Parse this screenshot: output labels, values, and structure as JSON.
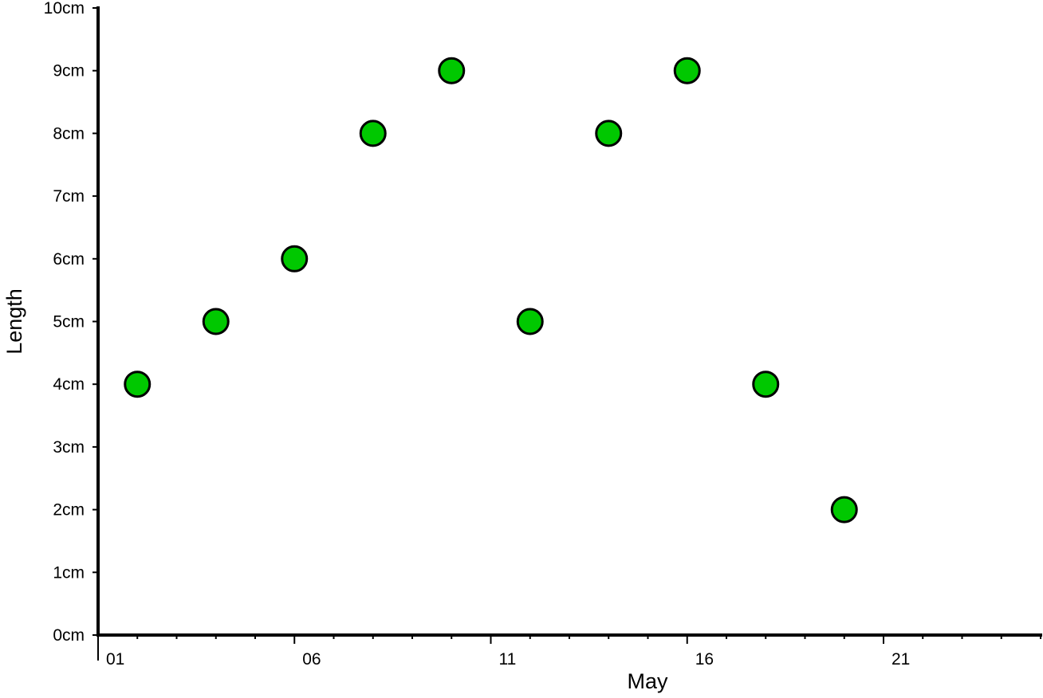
{
  "chart_data": {
    "type": "scatter",
    "title": "",
    "xlabel": "May",
    "ylabel": "Length",
    "x": [
      "2018-05-02",
      "2018-05-04",
      "2018-05-06",
      "2018-05-08",
      "2018-05-10",
      "2018-05-12",
      "2018-05-14",
      "2018-05-16",
      "2018-05-18",
      "2018-05-20"
    ],
    "y": [
      4,
      5,
      6,
      8,
      9,
      5,
      8,
      9,
      4,
      2
    ],
    "xlim": [
      "2018-05-01",
      "2018-05-25"
    ],
    "ylim": [
      0,
      10
    ],
    "x_tick_labels": [
      "01",
      "06",
      "11",
      "16",
      "21"
    ],
    "y_tick_labels": [
      "0cm",
      "1cm",
      "2cm",
      "3cm",
      "4cm",
      "5cm",
      "6cm",
      "7cm",
      "8cm",
      "9cm",
      "10cm"
    ],
    "y_unit": "cm",
    "grid": false,
    "marker": {
      "shape": "circle",
      "fill": "#00c800",
      "edge": "#000000"
    }
  }
}
